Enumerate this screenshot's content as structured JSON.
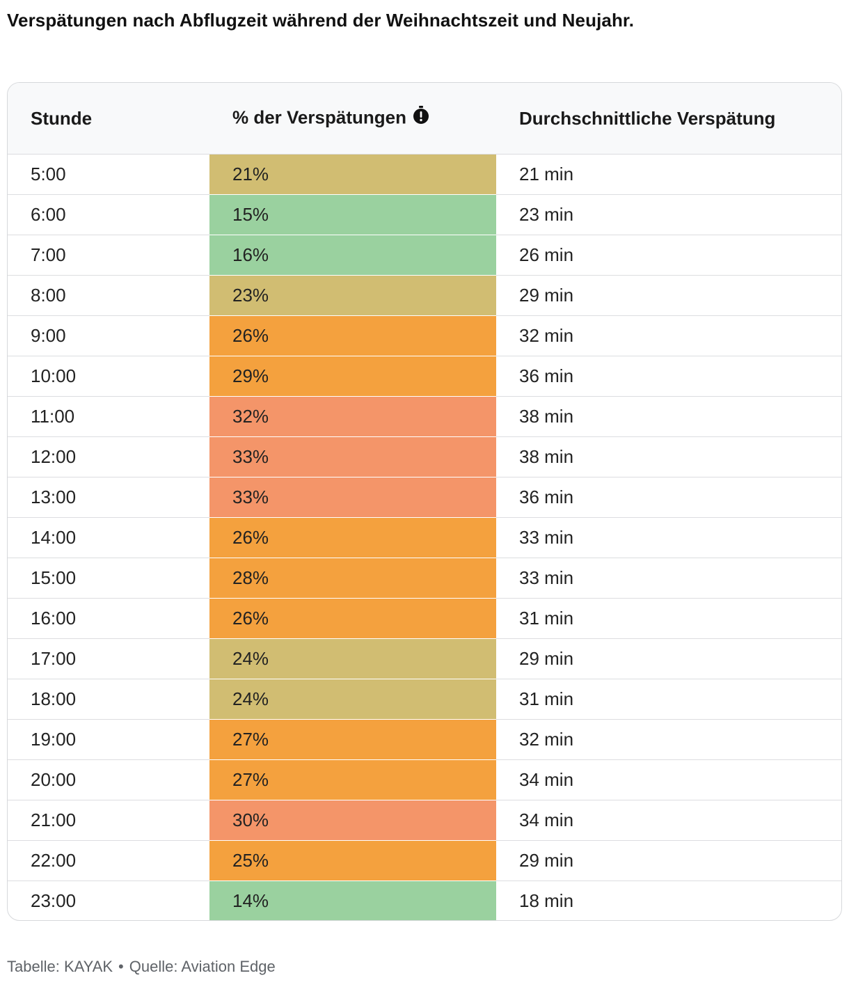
{
  "title": "Verspätungen nach Abflugzeit während der Weihnachtszeit und Neujahr.",
  "chart_data": {
    "type": "table",
    "columns": [
      "Stunde",
      "% der Verspätungen",
      "Durchschnittliche Verspätung"
    ],
    "info_icon": "stopwatch-alert-icon",
    "rows": [
      {
        "hour": "5:00",
        "pct": "21%",
        "pct_value": 21,
        "avg": "21 min",
        "color": "#d1bd72"
      },
      {
        "hour": "6:00",
        "pct": "15%",
        "pct_value": 15,
        "avg": "23 min",
        "color": "#9ad19f"
      },
      {
        "hour": "7:00",
        "pct": "16%",
        "pct_value": 16,
        "avg": "26 min",
        "color": "#9ad19f"
      },
      {
        "hour": "8:00",
        "pct": "23%",
        "pct_value": 23,
        "avg": "29 min",
        "color": "#d1bd72"
      },
      {
        "hour": "9:00",
        "pct": "26%",
        "pct_value": 26,
        "avg": "32 min",
        "color": "#f4a13e"
      },
      {
        "hour": "10:00",
        "pct": "29%",
        "pct_value": 29,
        "avg": "36 min",
        "color": "#f4a13e"
      },
      {
        "hour": "11:00",
        "pct": "32%",
        "pct_value": 32,
        "avg": "38 min",
        "color": "#f49569"
      },
      {
        "hour": "12:00",
        "pct": "33%",
        "pct_value": 33,
        "avg": "38 min",
        "color": "#f49569"
      },
      {
        "hour": "13:00",
        "pct": "33%",
        "pct_value": 33,
        "avg": "36 min",
        "color": "#f49569"
      },
      {
        "hour": "14:00",
        "pct": "26%",
        "pct_value": 26,
        "avg": "33 min",
        "color": "#f4a13e"
      },
      {
        "hour": "15:00",
        "pct": "28%",
        "pct_value": 28,
        "avg": "33 min",
        "color": "#f4a13e"
      },
      {
        "hour": "16:00",
        "pct": "26%",
        "pct_value": 26,
        "avg": "31 min",
        "color": "#f4a13e"
      },
      {
        "hour": "17:00",
        "pct": "24%",
        "pct_value": 24,
        "avg": "29 min",
        "color": "#d1bd72"
      },
      {
        "hour": "18:00",
        "pct": "24%",
        "pct_value": 24,
        "avg": "31 min",
        "color": "#d1bd72"
      },
      {
        "hour": "19:00",
        "pct": "27%",
        "pct_value": 27,
        "avg": "32 min",
        "color": "#f4a13e"
      },
      {
        "hour": "20:00",
        "pct": "27%",
        "pct_value": 27,
        "avg": "34 min",
        "color": "#f4a13e"
      },
      {
        "hour": "21:00",
        "pct": "30%",
        "pct_value": 30,
        "avg": "34 min",
        "color": "#f49569"
      },
      {
        "hour": "22:00",
        "pct": "25%",
        "pct_value": 25,
        "avg": "29 min",
        "color": "#f4a13e"
      },
      {
        "hour": "23:00",
        "pct": "14%",
        "pct_value": 14,
        "avg": "18 min",
        "color": "#9ad19f"
      }
    ]
  },
  "footer": {
    "table_credit": "Tabelle: KAYAK",
    "separator": "•",
    "source": "Quelle: Aviation Edge"
  }
}
